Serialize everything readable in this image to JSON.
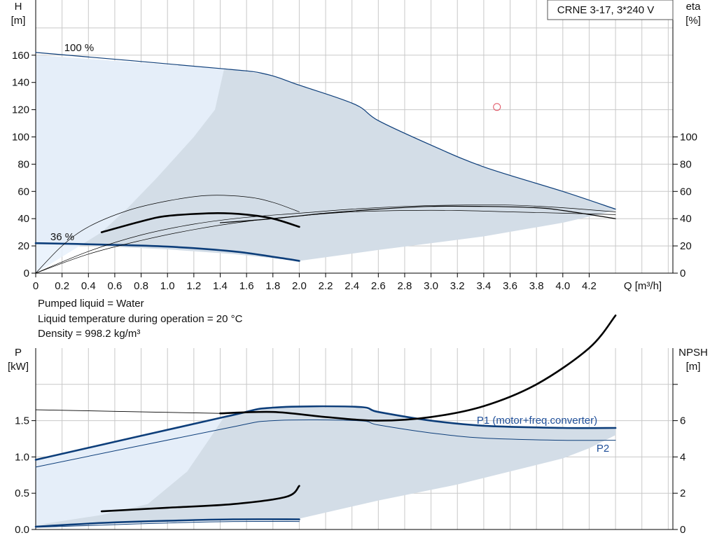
{
  "chart_data": [
    {
      "type": "line",
      "title": "CRNE 3-17, 3*240 V",
      "xlabel": "Q [m³/h]",
      "ylabel": [
        "H",
        "[m]"
      ],
      "y2label": [
        "eta",
        "[%]"
      ],
      "xlim": [
        0,
        4.8
      ],
      "ylim": [
        0,
        180
      ],
      "x_ticks": [
        "0",
        "0.2",
        "0.4",
        "0.6",
        "0.8",
        "1.0",
        "1.2",
        "1.4",
        "1.6",
        "1.8",
        "2.0",
        "2.2",
        "2.4",
        "2.6",
        "2.8",
        "3.0",
        "3.2",
        "3.4",
        "3.6",
        "3.8",
        "4.0",
        "4.2"
      ],
      "y_ticks": [
        "0",
        "20",
        "40",
        "60",
        "80",
        "100",
        "120",
        "140",
        "160"
      ],
      "y2_ticks": [
        "0",
        "20",
        "40",
        "60",
        "80",
        "100"
      ],
      "grid": true,
      "annotations": [
        "100 %",
        "36 %"
      ],
      "operating_range_fill": [
        [
          0.0,
          160
        ],
        [
          1.43,
          150
        ],
        [
          1.75,
          146
        ],
        [
          2.0,
          138
        ],
        [
          2.42,
          124
        ],
        [
          2.6,
          112
        ],
        [
          3.0,
          94
        ],
        [
          3.4,
          78
        ],
        [
          4.0,
          60
        ],
        [
          4.4,
          47
        ],
        [
          4.4,
          46
        ],
        [
          4.0,
          37
        ],
        [
          3.4,
          27
        ],
        [
          3.0,
          22
        ],
        [
          2.6,
          17
        ],
        [
          2.0,
          9
        ],
        [
          1.5,
          14
        ],
        [
          1.0,
          17.5
        ],
        [
          0.0,
          22
        ]
      ],
      "overlap_fill": [
        [
          0.0,
          160
        ],
        [
          1.43,
          150
        ],
        [
          1.36,
          120
        ],
        [
          1.2,
          100
        ],
        [
          0.92,
          70
        ],
        [
          0.7,
          48
        ],
        [
          0.5,
          30
        ],
        [
          0.0,
          0
        ]
      ],
      "series": [
        {
          "role": "H max speed",
          "color": "#0d3e7a",
          "points": [
            [
              0.0,
              162
            ],
            [
              1.43,
              150
            ],
            [
              1.75,
              146
            ],
            [
              2.0,
              138
            ],
            [
              2.42,
              124
            ],
            [
              2.6,
              112
            ],
            [
              3.0,
              94
            ],
            [
              3.4,
              78
            ],
            [
              4.0,
              60
            ],
            [
              4.4,
              47
            ]
          ]
        },
        {
          "role": "H min speed",
          "color": "#0d3e7a",
          "points": [
            [
              0.0,
              22
            ],
            [
              0.5,
              21
            ],
            [
              1.0,
              19.5
            ],
            [
              1.5,
              16
            ],
            [
              1.8,
              12
            ],
            [
              2.0,
              9
            ]
          ]
        },
        {
          "role": "eta max speed (motor+pump)",
          "color": "#000000",
          "points": [
            [
              1.4,
              37
            ],
            [
              1.8,
              40
            ],
            [
              2.2,
              44
            ],
            [
              2.6,
              47
            ],
            [
              3.0,
              49
            ],
            [
              3.4,
              49
            ],
            [
              3.8,
              48
            ],
            [
              4.0,
              46
            ],
            [
              4.4,
              40
            ]
          ]
        },
        {
          "role": "eta max speed (pump)",
          "color": "#000000",
          "points": [
            [
              0.0,
              0
            ],
            [
              0.4,
              14
            ],
            [
              0.8,
              24
            ],
            [
              1.2,
              32
            ],
            [
              1.6,
              38
            ],
            [
              2.0,
              42
            ],
            [
              2.4,
              45
            ],
            [
              2.8,
              46
            ],
            [
              3.2,
              46
            ],
            [
              3.6,
              45
            ],
            [
              4.0,
              44
            ],
            [
              4.4,
              43
            ]
          ]
        },
        {
          "role": "eta max speed (pump2)",
          "color": "#000000",
          "points": [
            [
              0.0,
              0
            ],
            [
              0.4,
              16
            ],
            [
              0.8,
              28
            ],
            [
              1.2,
              36
            ],
            [
              1.6,
              41
            ],
            [
              2.0,
              44
            ],
            [
              2.4,
              47
            ],
            [
              2.8,
              49
            ],
            [
              3.2,
              50
            ],
            [
              3.6,
              50
            ],
            [
              4.0,
              48
            ],
            [
              4.4,
              45
            ]
          ]
        },
        {
          "role": "eta min speed (motor+pump)",
          "color": "#000000",
          "points": [
            [
              0.5,
              30
            ],
            [
              0.8,
              38
            ],
            [
              1.0,
              42
            ],
            [
              1.35,
              44
            ],
            [
              1.6,
              43
            ],
            [
              1.8,
              40
            ],
            [
              2.0,
              34
            ]
          ]
        },
        {
          "role": "eta min speed (pump)",
          "color": "#000000",
          "points": [
            [
              0.0,
              0
            ],
            [
              0.2,
              20
            ],
            [
              0.4,
              34
            ],
            [
              0.7,
              46
            ],
            [
              1.0,
              53
            ],
            [
              1.3,
              57
            ],
            [
              1.6,
              56
            ],
            [
              1.8,
              52
            ],
            [
              2.0,
              45
            ]
          ]
        }
      ],
      "marker": {
        "x": 3.5,
        "y": 122
      }
    },
    {
      "type": "line",
      "ylabel": [
        "P",
        "[kW]"
      ],
      "y2label": [
        "NPSH",
        "[m]"
      ],
      "xlim": [
        0,
        4.8
      ],
      "ylim": [
        0,
        2
      ],
      "y_ticks": [
        "0.0",
        "0.5",
        "1.0",
        "1.5"
      ],
      "y2_ticks": [
        "0",
        "2",
        "4",
        "6"
      ],
      "grid": true,
      "annotations": [
        "P1 (motor+freq.converter)",
        "P2"
      ],
      "operating_range_fill": [
        [
          0.0,
          0.96
        ],
        [
          1.43,
          1.55
        ],
        [
          1.8,
          1.68
        ],
        [
          2.44,
          1.68
        ],
        [
          2.8,
          1.55
        ],
        [
          3.2,
          1.46
        ],
        [
          3.6,
          1.42
        ],
        [
          4.0,
          1.4
        ],
        [
          4.4,
          1.39
        ],
        [
          4.4,
          1.3
        ],
        [
          4.2,
          1.12
        ],
        [
          4.0,
          0.98
        ],
        [
          3.6,
          0.8
        ],
        [
          3.2,
          0.62
        ],
        [
          2.6,
          0.4
        ],
        [
          2.0,
          0.15
        ],
        [
          1.0,
          0.12
        ],
        [
          0.0,
          0.06
        ]
      ],
      "overlap_fill": [
        [
          0.0,
          0.96
        ],
        [
          1.43,
          1.55
        ],
        [
          1.3,
          1.2
        ],
        [
          1.15,
          0.8
        ],
        [
          0.85,
          0.35
        ],
        [
          0.5,
          0.2
        ],
        [
          0.0,
          0.06
        ]
      ],
      "series": [
        {
          "name": "P1 (motor+freq.converter)",
          "color": "#0d3e7a",
          "points": [
            [
              0.0,
              0.96
            ],
            [
              1.43,
              1.55
            ],
            [
              1.8,
              1.68
            ],
            [
              2.44,
              1.69
            ],
            [
              2.6,
              1.62
            ],
            [
              3.0,
              1.5
            ],
            [
              3.4,
              1.43
            ],
            [
              4.0,
              1.4
            ],
            [
              4.4,
              1.4
            ]
          ]
        },
        {
          "name": "P2",
          "color": "#0d3e7a",
          "points": [
            [
              0.0,
              0.86
            ],
            [
              1.43,
              1.39
            ],
            [
              1.8,
              1.5
            ],
            [
              2.44,
              1.5
            ],
            [
              2.6,
              1.44
            ],
            [
              3.0,
              1.33
            ],
            [
              3.4,
              1.26
            ],
            [
              4.0,
              1.23
            ],
            [
              4.4,
              1.23
            ]
          ]
        },
        {
          "role": "P1 min speed",
          "color": "#0d3e7a",
          "points": [
            [
              0.0,
              0.04
            ],
            [
              0.5,
              0.09
            ],
            [
              1.0,
              0.12
            ],
            [
              1.5,
              0.14
            ],
            [
              2.0,
              0.14
            ]
          ]
        },
        {
          "role": "P2 min speed",
          "color": "#0d3e7a",
          "points": [
            [
              0.0,
              0.03
            ],
            [
              0.5,
              0.06
            ],
            [
              1.0,
              0.09
            ],
            [
              1.5,
              0.11
            ],
            [
              2.0,
              0.11
            ]
          ]
        },
        {
          "role": "NPSH",
          "color": "#000000",
          "points": [
            [
              1.4,
              1.6
            ],
            [
              1.8,
              1.62
            ],
            [
              2.2,
              1.55
            ],
            [
              2.6,
              1.5
            ],
            [
              3.0,
              1.55
            ],
            [
              3.4,
              1.7
            ],
            [
              3.8,
              2.0
            ],
            [
              4.2,
              2.5
            ],
            [
              4.4,
              2.95
            ]
          ]
        },
        {
          "role": "NPSH min speed",
          "color": "#000000",
          "points": [
            [
              0.5,
              0.25
            ],
            [
              1.0,
              0.3
            ],
            [
              1.5,
              0.35
            ],
            [
              1.9,
              0.45
            ],
            [
              2.0,
              0.6
            ]
          ]
        },
        {
          "role": "NPSH thin",
          "color": "#000000",
          "points": [
            [
              0.0,
              1.65
            ],
            [
              1.4,
              1.6
            ]
          ]
        }
      ]
    }
  ],
  "info": {
    "liquid": "Pumped liquid = Water",
    "temperature": "Liquid temperature during operation = 20 °C",
    "density": "Density = 998.2 kg/m³"
  }
}
